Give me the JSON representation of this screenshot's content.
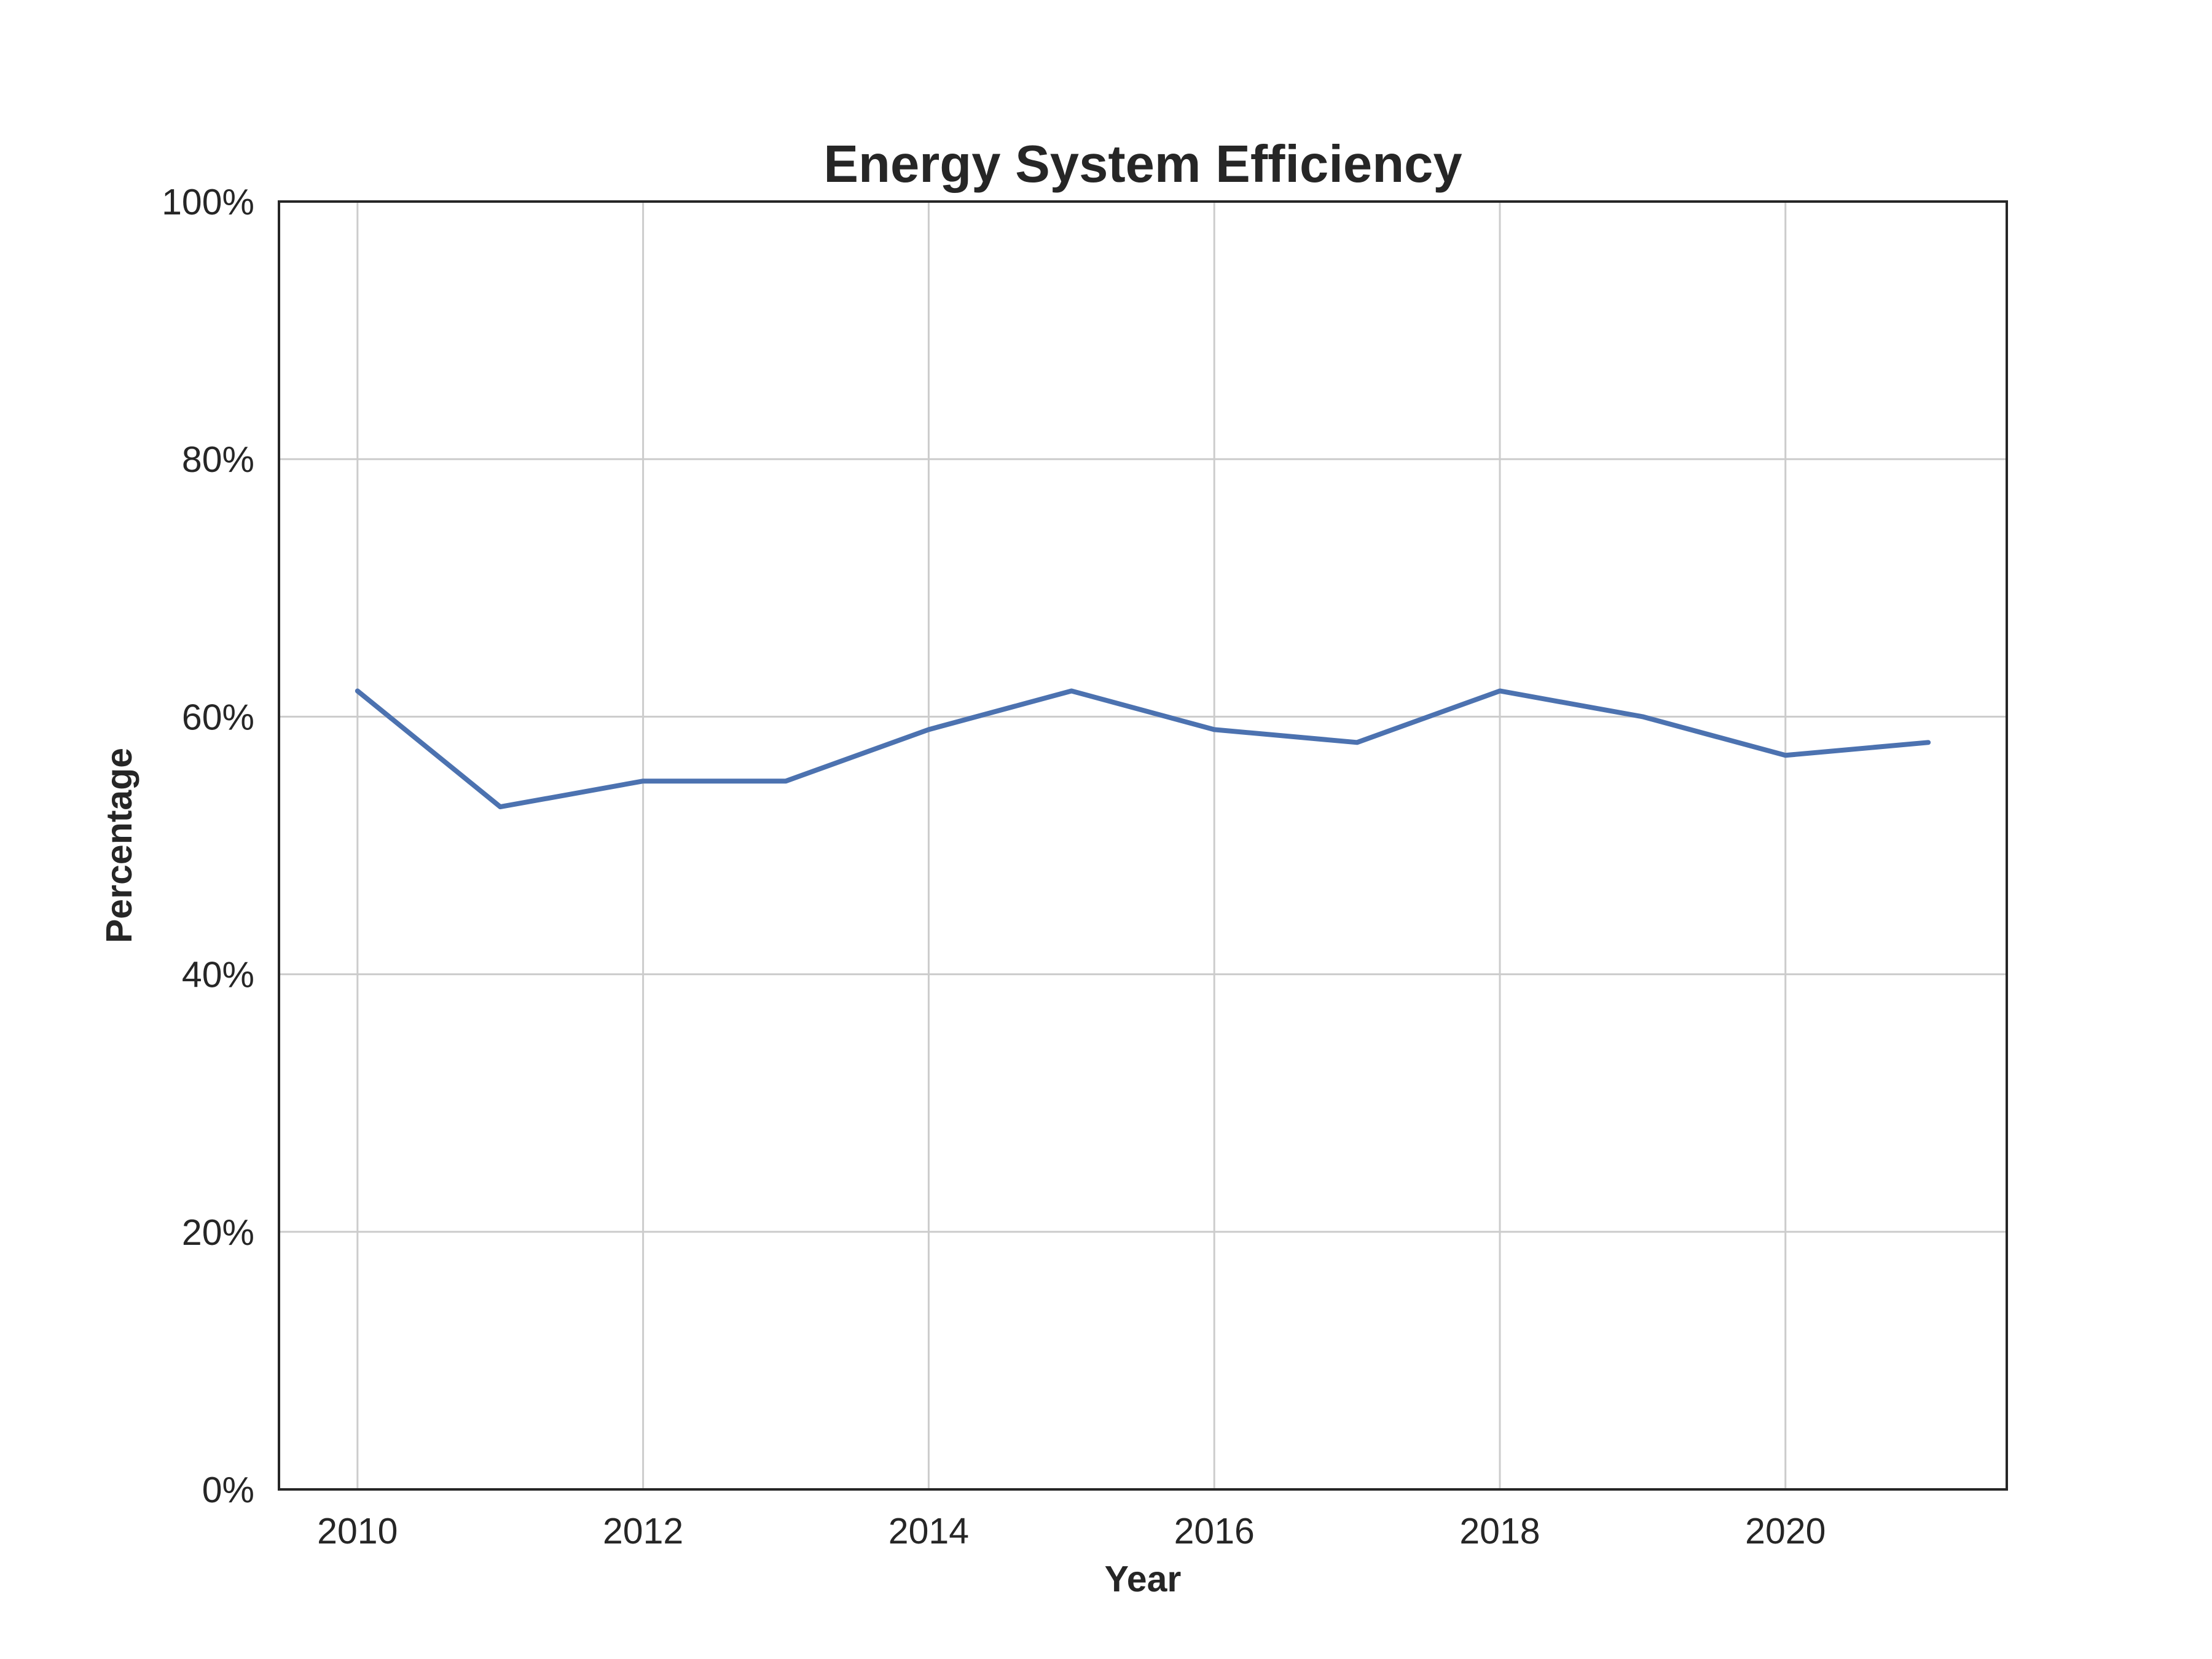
{
  "chart_data": {
    "type": "line",
    "title": "Energy System Efficiency",
    "xlabel": "Year",
    "ylabel": "Percentage",
    "x": [
      2010,
      2011,
      2012,
      2013,
      2014,
      2015,
      2016,
      2017,
      2018,
      2019,
      2020,
      2021
    ],
    "series": [
      {
        "values": [
          62,
          53,
          55,
          55,
          59,
          62,
          59,
          58,
          62,
          60,
          57,
          58
        ],
        "color": "#4c72b0"
      }
    ],
    "xlim": [
      2009.45,
      2021.55
    ],
    "ylim": [
      0,
      100
    ],
    "x_ticks": [
      2010,
      2012,
      2014,
      2016,
      2018,
      2020
    ],
    "x_tick_labels": [
      "2010",
      "2012",
      "2014",
      "2016",
      "2018",
      "2020"
    ],
    "y_ticks": [
      0,
      20,
      40,
      60,
      80,
      100
    ],
    "y_tick_labels": [
      "0%",
      "20%",
      "40%",
      "60%",
      "80%",
      "100%"
    ],
    "grid": true,
    "legend": "none"
  }
}
